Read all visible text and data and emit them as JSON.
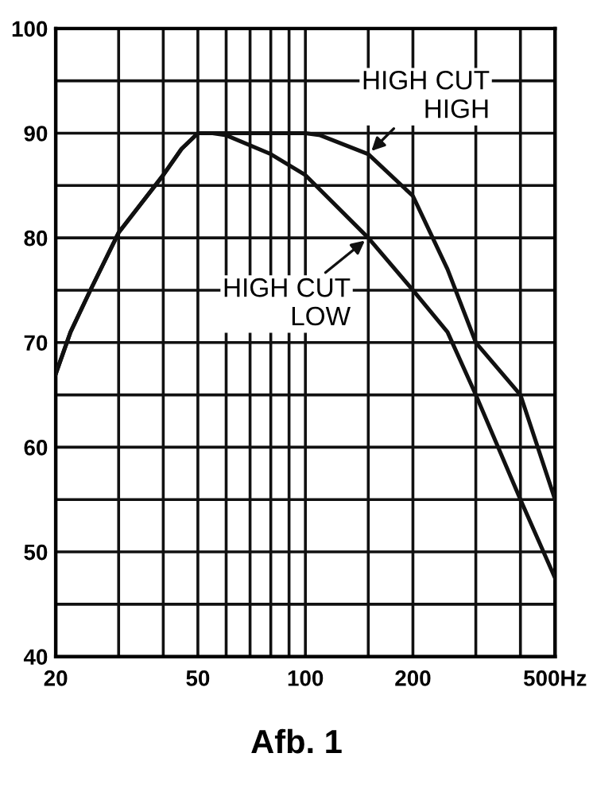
{
  "chart_data": {
    "type": "line",
    "log": "x",
    "grid": true,
    "marker": "none",
    "line_style": "solid",
    "xlim": [
      20,
      500
    ],
    "ylim": [
      40,
      100
    ],
    "xticks": [
      20,
      {
        "value": 30,
        "label": null
      },
      {
        "value": 40,
        "label": null
      },
      50,
      {
        "value": 60,
        "label": null
      },
      {
        "value": 70,
        "label": null
      },
      {
        "value": 80,
        "label": null
      },
      {
        "value": 90,
        "label": null
      },
      100,
      {
        "value": 150,
        "label": null
      },
      200,
      {
        "value": 300,
        "label": null
      },
      {
        "value": 400,
        "label": null
      },
      {
        "value": 500,
        "label": "500Hz"
      }
    ],
    "yticks": [
      40,
      {
        "value": 45,
        "label": null
      },
      50,
      {
        "value": 55,
        "label": null
      },
      60,
      {
        "value": 65,
        "label": null
      },
      70,
      {
        "value": 75,
        "label": null
      },
      80,
      {
        "value": 85,
        "label": null
      },
      90,
      {
        "value": 95,
        "label": null
      },
      100
    ],
    "series": [
      {
        "color": "#111111",
        "x": [
          20,
          22,
          25,
          30,
          40,
          45,
          50,
          60,
          80,
          100,
          110,
          150,
          200,
          250,
          300,
          400,
          500
        ],
        "values": [
          67,
          71,
          75,
          80.5,
          86,
          88.5,
          90,
          90,
          90,
          90,
          89.8,
          88,
          84,
          77,
          70,
          65,
          55
        ]
      },
      {
        "color": "#111111",
        "x": [
          20,
          22,
          25,
          30,
          40,
          45,
          50,
          55,
          60,
          80,
          100,
          150,
          200,
          250,
          300,
          400,
          500
        ],
        "values": [
          67,
          71,
          75,
          80.5,
          86,
          88.5,
          90,
          90,
          89.8,
          88,
          86,
          80,
          75,
          71,
          65,
          55,
          47.5
        ]
      }
    ],
    "annotations": [
      {
        "text": "HIGH CUT\nHIGH",
        "x": 150,
        "y": 88
      },
      {
        "text": "HIGH CUT\nLOW",
        "x": 150,
        "y": 80
      },
      "Afb. 1"
    ]
  }
}
